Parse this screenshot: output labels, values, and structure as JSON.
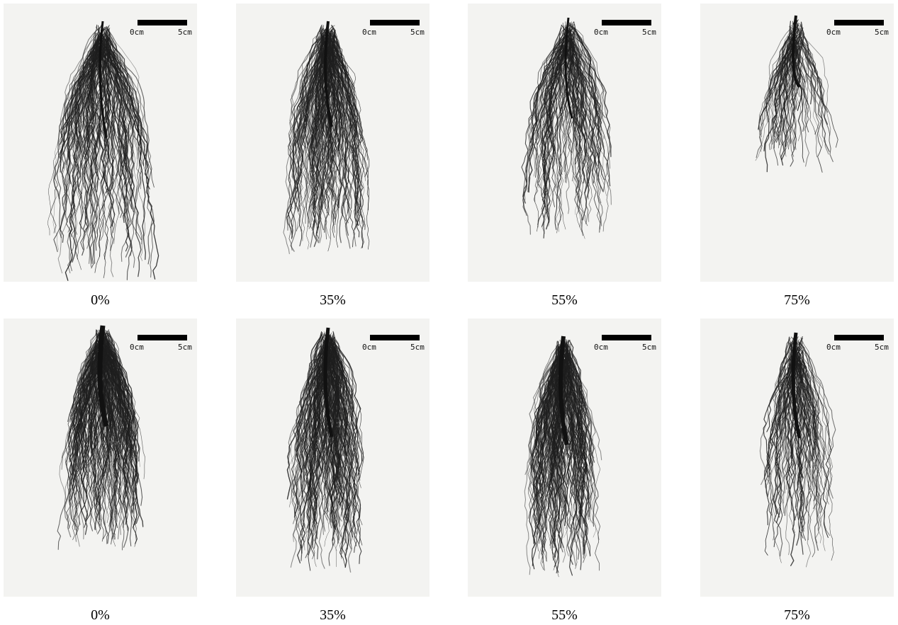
{
  "rows": [
    {
      "panels": [
        {
          "label": "0%",
          "scale_start": "0cm",
          "scale_end": "5cm"
        },
        {
          "label": "35%",
          "scale_start": "0cm",
          "scale_end": "5cm"
        },
        {
          "label": "55%",
          "scale_start": "0cm",
          "scale_end": "5cm"
        },
        {
          "label": "75%",
          "scale_start": "0cm",
          "scale_end": "5cm"
        }
      ]
    },
    {
      "panels": [
        {
          "label": "0%",
          "scale_start": "0cm",
          "scale_end": "5cm"
        },
        {
          "label": "35%",
          "scale_start": "0cm",
          "scale_end": "5cm"
        },
        {
          "label": "55%",
          "scale_start": "0cm",
          "scale_end": "5cm"
        },
        {
          "label": "75%",
          "scale_start": "0cm",
          "scale_end": "5cm"
        }
      ]
    }
  ]
}
